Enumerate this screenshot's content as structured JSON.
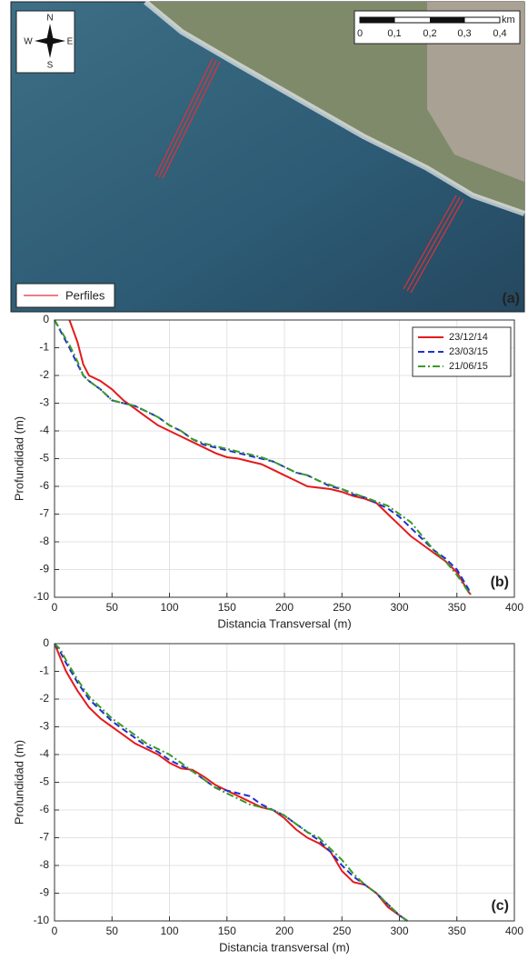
{
  "map": {
    "compass": {
      "n": "N",
      "s": "S",
      "w": "W",
      "e": "E"
    },
    "scale_bar": {
      "unit": "km",
      "labels": [
        "0",
        "0,1",
        "0,2",
        "0,3",
        "0,4"
      ]
    },
    "legend": "Perfiles",
    "label": "(a)"
  },
  "chart_data": [
    {
      "type": "line",
      "label": "(b)",
      "xlabel": "Distancia Transversal (m)",
      "ylabel": "Profundidad (m)",
      "xlim": [
        0,
        400
      ],
      "ylim": [
        -10,
        0
      ],
      "xticks": [
        0,
        50,
        100,
        150,
        200,
        250,
        300,
        350,
        400
      ],
      "yticks": [
        0,
        -1,
        -2,
        -3,
        -4,
        -5,
        -6,
        -7,
        -8,
        -9,
        -10
      ],
      "grid": true,
      "legend": "upper right",
      "x": [
        0,
        13,
        20,
        25,
        30,
        40,
        50,
        60,
        70,
        80,
        90,
        100,
        110,
        120,
        130,
        140,
        150,
        160,
        170,
        180,
        190,
        200,
        210,
        220,
        230,
        240,
        250,
        260,
        270,
        280,
        290,
        300,
        310,
        320,
        330,
        340,
        350,
        360,
        362
      ],
      "series": [
        {
          "name": "23/12/14",
          "color": "#e41a1c",
          "line_style": "solid",
          "values": [
            null,
            0,
            -0.8,
            -1.6,
            -2.0,
            -2.2,
            -2.5,
            -2.9,
            -3.2,
            -3.5,
            -3.8,
            -4.0,
            -4.2,
            -4.4,
            -4.6,
            -4.8,
            -4.95,
            -5.0,
            -5.1,
            -5.2,
            -5.4,
            -5.6,
            -5.8,
            -6.0,
            -6.05,
            -6.1,
            -6.2,
            -6.35,
            -6.45,
            -6.6,
            -7.0,
            -7.4,
            -7.8,
            -8.1,
            -8.4,
            -8.7,
            -9.1,
            -9.8,
            -9.9
          ]
        },
        {
          "name": "23/03/15",
          "color": "#1f2fd0",
          "line_style": "dashed",
          "values": [
            0,
            -1.0,
            -1.6,
            -2.0,
            -2.2,
            -2.5,
            -2.9,
            -3.0,
            -3.1,
            -3.3,
            -3.5,
            -3.8,
            -4.0,
            -4.3,
            -4.5,
            -4.6,
            -4.7,
            -4.8,
            -4.9,
            -5.0,
            -5.1,
            -5.3,
            -5.5,
            -5.6,
            -5.8,
            -6.0,
            -6.1,
            -6.3,
            -6.4,
            -6.6,
            -6.8,
            -7.1,
            -7.5,
            -7.9,
            -8.3,
            -8.6,
            -9.0,
            -9.7,
            -9.9
          ]
        },
        {
          "name": "21/06/15",
          "color": "#3a9a2a",
          "line_style": "dashdot",
          "values": [
            0,
            -0.9,
            -1.5,
            -2.0,
            -2.2,
            -2.5,
            -2.9,
            -3.0,
            -3.1,
            -3.3,
            -3.5,
            -3.8,
            -4.0,
            -4.3,
            -4.45,
            -4.55,
            -4.65,
            -4.75,
            -4.85,
            -4.95,
            -5.1,
            -5.3,
            -5.5,
            -5.6,
            -5.8,
            -5.95,
            -6.1,
            -6.25,
            -6.4,
            -6.55,
            -6.7,
            -7.0,
            -7.3,
            -7.8,
            -8.3,
            -8.7,
            -9.2,
            -9.8,
            -9.9
          ]
        }
      ]
    },
    {
      "type": "line",
      "label": "(c)",
      "xlabel": "Distancia transversal (m)",
      "ylabel": "Profundidad (m)",
      "xlim": [
        0,
        400
      ],
      "ylim": [
        -10,
        0
      ],
      "xticks": [
        0,
        50,
        100,
        150,
        200,
        250,
        300,
        350,
        400
      ],
      "yticks": [
        0,
        -1,
        -2,
        -3,
        -4,
        -5,
        -6,
        -7,
        -8,
        -9,
        -10
      ],
      "grid": true,
      "legend": false,
      "x": [
        0,
        5,
        10,
        20,
        30,
        40,
        50,
        60,
        70,
        80,
        90,
        100,
        110,
        120,
        130,
        140,
        150,
        160,
        170,
        180,
        190,
        200,
        210,
        220,
        230,
        240,
        250,
        260,
        270,
        280,
        290,
        300,
        307
      ],
      "series": [
        {
          "name": "23/12/14",
          "color": "#e41a1c",
          "line_style": "solid",
          "values": [
            0,
            -0.5,
            -1.0,
            -1.7,
            -2.3,
            -2.7,
            -3.0,
            -3.3,
            -3.6,
            -3.8,
            -4.0,
            -4.3,
            -4.5,
            -4.55,
            -4.8,
            -5.1,
            -5.3,
            -5.5,
            -5.7,
            -5.9,
            -6.0,
            -6.3,
            -6.7,
            -7.0,
            -7.2,
            -7.5,
            -8.2,
            -8.6,
            -8.7,
            -9.0,
            -9.5,
            -9.8,
            -10
          ]
        },
        {
          "name": "23/03/15",
          "color": "#1f2fd0",
          "line_style": "dashed",
          "values": [
            0,
            -0.3,
            -0.7,
            -1.4,
            -2.0,
            -2.4,
            -2.8,
            -3.1,
            -3.4,
            -3.7,
            -3.9,
            -4.2,
            -4.4,
            -4.6,
            -4.9,
            -5.2,
            -5.3,
            -5.4,
            -5.5,
            -5.8,
            -6.0,
            -6.2,
            -6.5,
            -6.8,
            -7.1,
            -7.5,
            -8.0,
            -8.4,
            -8.7,
            -9.0,
            -9.4,
            -9.8,
            -10
          ]
        },
        {
          "name": "21/06/15",
          "color": "#3a9a2a",
          "line_style": "dashdot",
          "values": [
            0,
            -0.2,
            -0.6,
            -1.3,
            -1.9,
            -2.3,
            -2.7,
            -3.0,
            -3.3,
            -3.6,
            -3.8,
            -4.0,
            -4.3,
            -4.6,
            -4.9,
            -5.2,
            -5.4,
            -5.6,
            -5.8,
            -5.9,
            -6.0,
            -6.2,
            -6.5,
            -6.8,
            -7.0,
            -7.4,
            -7.8,
            -8.3,
            -8.7,
            -9.0,
            -9.4,
            -9.8,
            -10
          ]
        }
      ]
    }
  ]
}
